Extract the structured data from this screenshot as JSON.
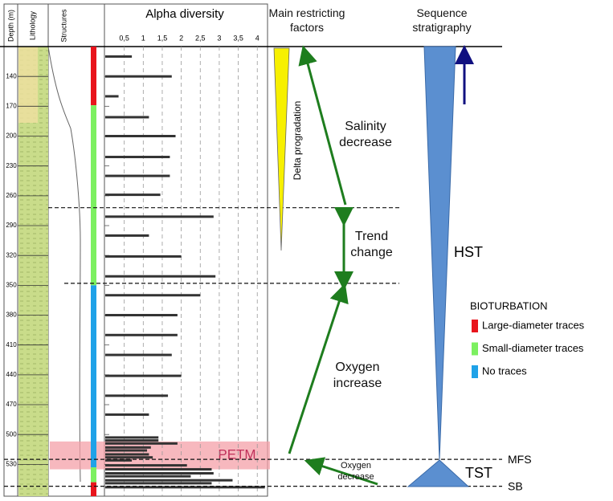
{
  "chart_data": {
    "type": "bar",
    "depth_axis": {
      "title": "Depth (m)",
      "ylim": [
        110,
        562
      ],
      "yticks": [
        140,
        170,
        200,
        230,
        260,
        290,
        320,
        350,
        380,
        410,
        440,
        470,
        500,
        530
      ]
    },
    "columns": [
      "Lithology",
      "Structures"
    ],
    "alpha_diversity": {
      "title": "Alpha diversity",
      "xlim": [
        0,
        4.27
      ],
      "xticks": [
        {
          "value": 0.5,
          "label": "0,5"
        },
        1,
        {
          "value": 1.5,
          "label": "1,5"
        },
        2,
        {
          "value": 2.5,
          "label": "2,5"
        },
        3,
        {
          "value": 3.5,
          "label": "3,5"
        },
        4
      ],
      "color": "#333333",
      "grid": true,
      "depths": [
        120,
        140,
        160,
        181,
        200,
        221,
        240,
        259,
        281,
        300,
        321,
        341,
        360,
        380,
        400,
        420,
        441,
        461,
        480,
        503,
        506,
        509,
        513,
        516,
        520,
        523,
        526,
        531,
        535,
        539,
        542,
        546,
        549,
        553
      ],
      "values": [
        0.7,
        1.75,
        0.35,
        1.15,
        1.85,
        1.7,
        1.7,
        1.45,
        2.85,
        1.15,
        2.0,
        2.9,
        2.5,
        1.9,
        1.9,
        1.75,
        2.0,
        1.65,
        1.15,
        1.4,
        1.4,
        1.9,
        1.2,
        1.1,
        1.15,
        1.25,
        0.7,
        2.15,
        2.8,
        2.85,
        2.25,
        3.35,
        2.8,
        4.2
      ]
    },
    "bioturbation": {
      "title": "BIOTURBATION",
      "legend": [
        {
          "name": "Large-diameter traces",
          "color": "#e8141c"
        },
        {
          "name": "Small-diameter traces",
          "color": "#7cf060"
        },
        {
          "name": "No traces",
          "color": "#1fa2e8"
        }
      ],
      "intervals": [
        {
          "from": 110,
          "to": 169,
          "kind": 0
        },
        {
          "from": 169,
          "to": 350,
          "kind": 1
        },
        {
          "from": 350,
          "to": 533,
          "kind": 2
        },
        {
          "from": 533,
          "to": 548,
          "kind": 1
        },
        {
          "from": 548,
          "to": 562,
          "kind": 0
        }
      ]
    },
    "petm": {
      "label": "PETM",
      "from": 507,
      "to": 535
    },
    "surfaces": [
      {
        "depth": 272
      },
      {
        "depth": 348
      },
      {
        "depth": 525,
        "label": "MFS"
      },
      {
        "depth": 552,
        "label": "SB"
      }
    ],
    "factors": {
      "title": "Main restricting factors",
      "delta": "Delta progradation",
      "salinity": "Salinity decrease",
      "trend": "Trend change",
      "oxygen_up": "Oxygen increase",
      "oxygen_down": "Oxygen decrease"
    },
    "sequence": {
      "title": "Sequence stratigraphy",
      "hst": "HST",
      "tst": "TST"
    }
  }
}
